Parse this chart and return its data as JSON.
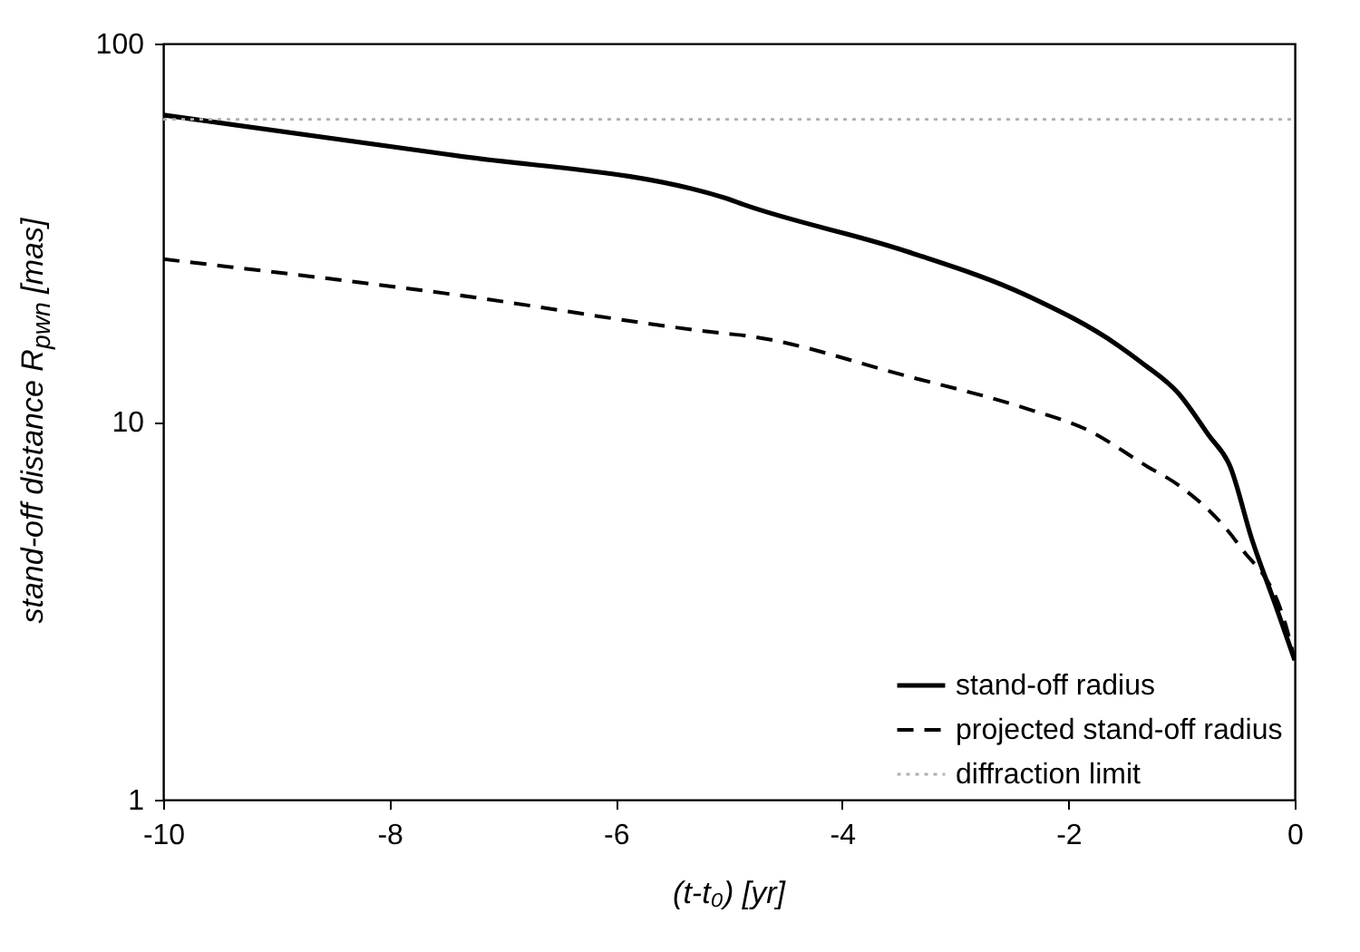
{
  "chart_data": {
    "type": "line",
    "xlabel": "(t-t₀) [yr]",
    "ylabel": "stand-off distance R$_{pwn}$ [mas]",
    "xlim": [
      -10,
      0
    ],
    "xticks": [
      -10,
      -8,
      -6,
      -4,
      -2,
      0
    ],
    "ylim": [
      1,
      100
    ],
    "yticks": [
      1,
      10,
      100
    ],
    "log": "y",
    "grid": false,
    "legend": "bottom right",
    "series": [
      {
        "name": "stand-off radius",
        "color": "#000000",
        "line_style": "solid",
        "x": [
          -10,
          -7.49,
          -5.03,
          -4.87,
          -3.43,
          -2.36,
          -1.56,
          -1.35,
          -1.03,
          -0.76,
          -0.57,
          -0.38,
          -0.17,
          0
        ],
        "values": [
          64.7,
          50.9,
          39,
          37.5,
          28.2,
          21.5,
          15.9,
          14.3,
          11.9,
          9.2,
          7.6,
          4.9,
          3.27,
          2.34
        ]
      },
      {
        "name": "projected stand-off radius",
        "color": "#000000",
        "line_style": "dashed",
        "x": [
          -10,
          -7.49,
          -5.03,
          -4.87,
          -3.43,
          -2.36,
          -1.83,
          -1.3,
          -1.03,
          -0.49,
          -0.08,
          0
        ],
        "values": [
          26.9,
          21.8,
          17.1,
          16.9,
          13.2,
          10.8,
          9.5,
          7.6,
          6.8,
          4.7,
          2.9,
          2.34
        ]
      },
      {
        "name": "diffraction limit",
        "color": "#b0b0b0",
        "line_style": "dotted",
        "x": [
          -10,
          0
        ],
        "values": [
          63,
          63
        ]
      }
    ]
  }
}
